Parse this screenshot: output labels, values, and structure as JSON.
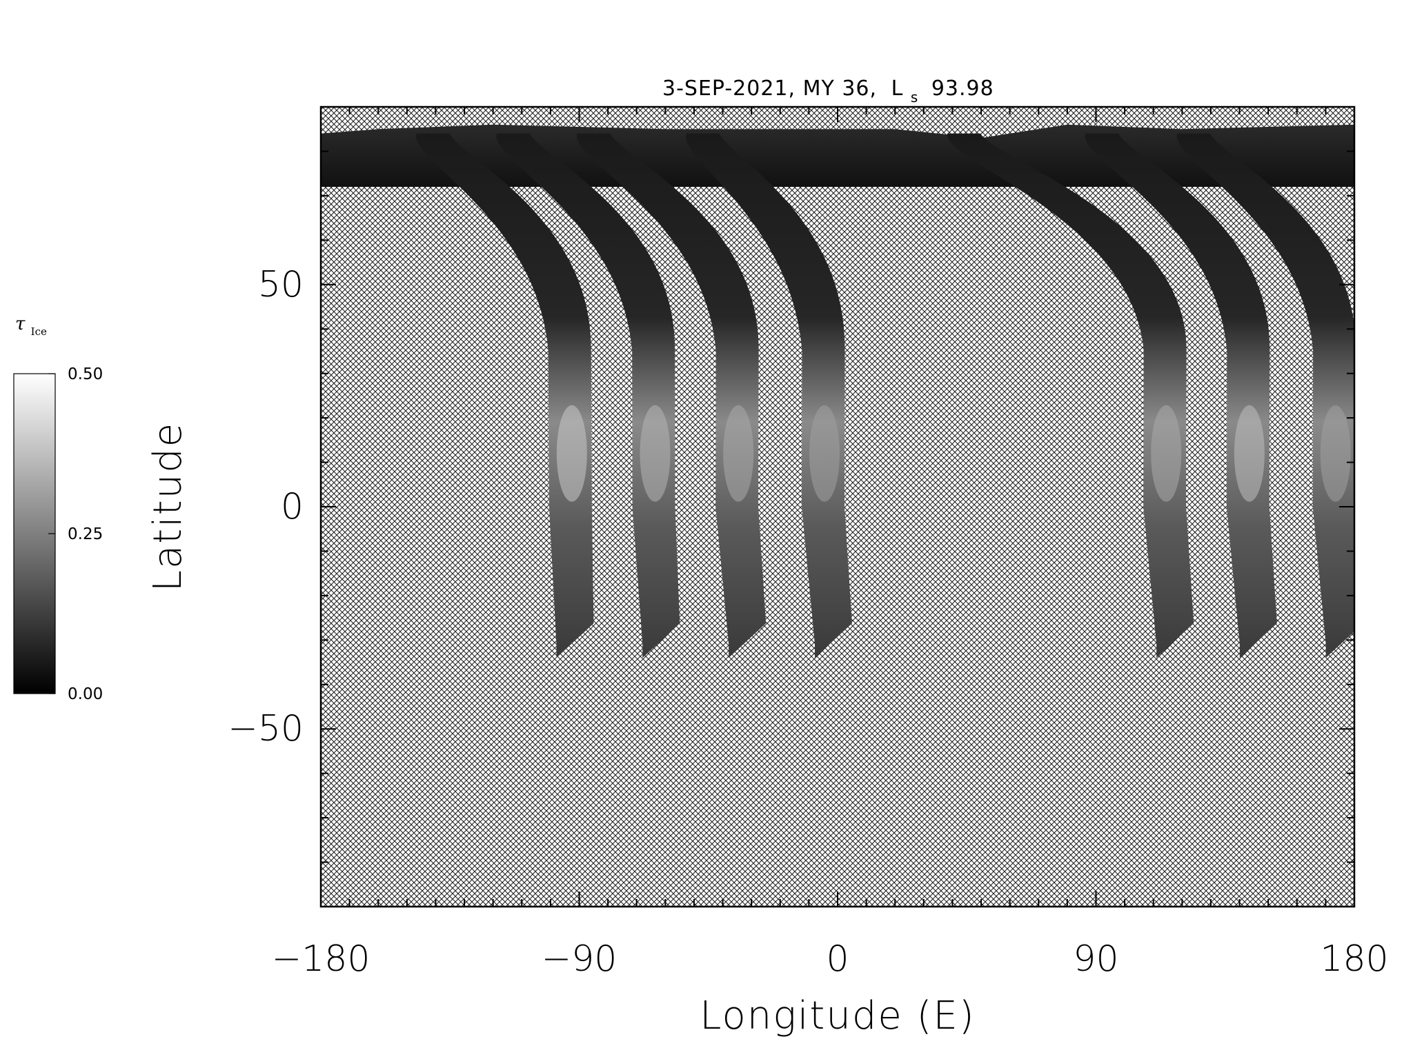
{
  "title": {
    "date": "3-SEP-2021, MY 36,",
    "ls_symbol": "L",
    "ls_subscript": "s",
    "ls_value": "93.98"
  },
  "axes": {
    "xlabel": "Longitude (E)",
    "ylabel": "Latitude",
    "xlim": [
      -180,
      180
    ],
    "ylim": [
      -90,
      90
    ],
    "xticks_major": [
      -180,
      -90,
      0,
      90,
      180
    ],
    "xtick_labels": [
      "−180",
      "−90",
      "0",
      "90",
      "180"
    ],
    "yticks_major": [
      50,
      0,
      -50
    ],
    "ytick_labels": [
      "50",
      "0",
      "−50"
    ],
    "xminor_step": 10,
    "yminor_step": 10
  },
  "colorbar": {
    "label_symbol": "τ",
    "label_subscript": "Ice",
    "ticks": [
      {
        "value": 0.5,
        "label": "0.50"
      },
      {
        "value": 0.25,
        "label": "0.25"
      },
      {
        "value": 0.0,
        "label": "0.00"
      }
    ],
    "range": [
      0.0,
      0.5
    ]
  },
  "no_data_fill": "crosshatch",
  "swaths": [
    {
      "name": "swath-1",
      "lon_bottom": -84,
      "lat_bottom": -34,
      "lon_lat0": -88,
      "lon_top": -140,
      "brightness": 0.55
    },
    {
      "name": "swath-2",
      "lon_bottom": -54,
      "lat_bottom": -34,
      "lon_lat0": -59,
      "lon_top": -112,
      "brightness": 0.45
    },
    {
      "name": "swath-3",
      "lon_bottom": -24,
      "lat_bottom": -34,
      "lon_lat0": -30,
      "lon_top": -84,
      "brightness": 0.4
    },
    {
      "name": "swath-4",
      "lon_bottom": 6,
      "lat_bottom": -34,
      "lon_lat0": 0,
      "lon_top": -46,
      "brightness": 0.35
    },
    {
      "name": "swath-5",
      "lon_bottom": 125,
      "lat_bottom": -34,
      "lon_lat0": 119,
      "lon_top": 45,
      "brightness": 0.4
    },
    {
      "name": "swath-6",
      "lon_bottom": 154,
      "lat_bottom": -34,
      "lon_lat0": 148,
      "lon_top": 93,
      "brightness": 0.5
    },
    {
      "name": "swath-7",
      "lon_bottom": 184,
      "lat_bottom": -34,
      "lon_lat0": 178,
      "lon_top": 125,
      "brightness": 0.35
    }
  ]
}
